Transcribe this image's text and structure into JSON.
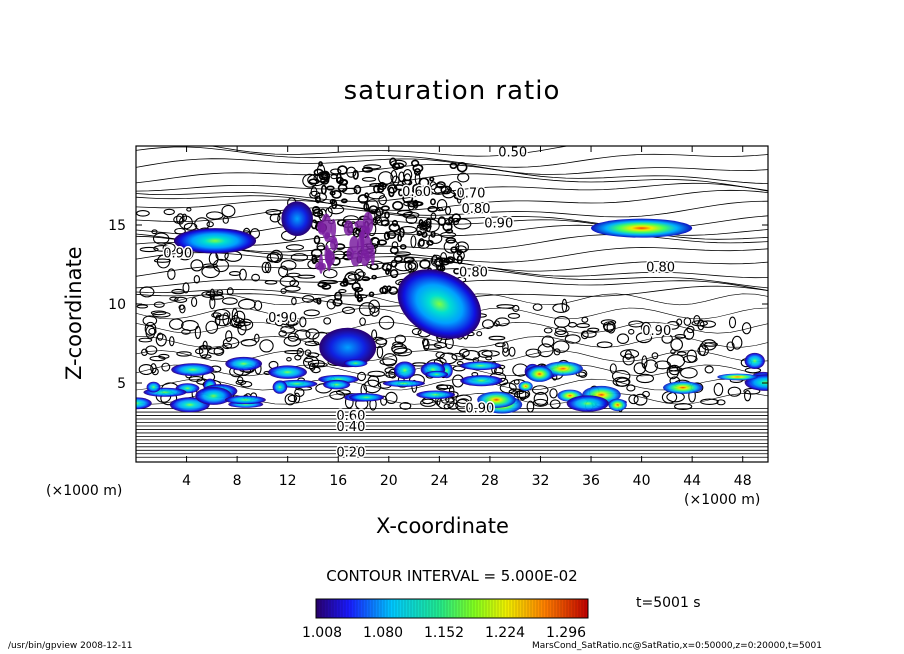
{
  "chart_data": {
    "type": "heatmap",
    "title": "saturation ratio",
    "xlabel": "X-coordinate",
    "ylabel": "Z-coordinate",
    "x_unit": "(×1000 m)",
    "y_unit": "(×1000 m)",
    "xlim": [
      0,
      50
    ],
    "ylim": [
      0,
      20
    ],
    "x_ticks": [
      4,
      8,
      12,
      16,
      20,
      24,
      28,
      32,
      36,
      40,
      44,
      48
    ],
    "y_ticks": [
      5,
      10,
      15
    ],
    "contour_interval": "CONTOUR INTERVAL = 5.000E-02",
    "contour_labels": [
      {
        "text": "0.50",
        "x": 29.8,
        "z": 19.6
      },
      {
        "text": "0.60",
        "x": 22.2,
        "z": 17.1
      },
      {
        "text": "0.70",
        "x": 26.5,
        "z": 17.0
      },
      {
        "text": "0.80",
        "x": 26.9,
        "z": 16.0
      },
      {
        "text": "0.90",
        "x": 28.7,
        "z": 15.1
      },
      {
        "text": "0.90",
        "x": 3.3,
        "z": 13.2
      },
      {
        "text": "0.80",
        "x": 26.7,
        "z": 12.0
      },
      {
        "text": "0.80",
        "x": 41.5,
        "z": 12.3
      },
      {
        "text": "0.90",
        "x": 11.6,
        "z": 9.1
      },
      {
        "text": "0.90",
        "x": 41.2,
        "z": 8.3
      },
      {
        "text": "0.90",
        "x": 27.2,
        "z": 3.4
      },
      {
        "text": "0.60",
        "x": 17.0,
        "z": 2.9
      },
      {
        "text": "0.40",
        "x": 17.0,
        "z": 2.2
      },
      {
        "text": "0.20",
        "x": 17.0,
        "z": 0.6
      }
    ],
    "supersaturated_regions": [
      {
        "x": [
          36,
          44
        ],
        "z": [
          14.2,
          15.4
        ],
        "max": 1.3
      },
      {
        "x": [
          3,
          9.5
        ],
        "z": [
          13.2,
          14.8
        ],
        "max": 1.15
      },
      {
        "x": [
          11.5,
          14
        ],
        "z": [
          14.3,
          16.5
        ],
        "max": 1.1
      },
      {
        "x": [
          20.5,
          27.5
        ],
        "z": [
          8,
          12
        ],
        "max": 1.15
      },
      {
        "x": [
          14.5,
          19
        ],
        "z": [
          12,
          15.5
        ],
        "max": 1.3
      },
      {
        "x": [
          14.5,
          19
        ],
        "z": [
          6,
          8.5
        ],
        "max": 1.1
      },
      {
        "x": [
          0,
          50
        ],
        "z": [
          3.5,
          6.5
        ],
        "max": 1.3
      }
    ]
  },
  "colorbar": {
    "ticks": [
      "1.008",
      "1.080",
      "1.152",
      "1.224",
      "1.296"
    ],
    "min": 1.008,
    "max": 1.296
  },
  "time_label": "t=5001 s",
  "footer": {
    "left": "/usr/bin/gpview   2008-12-11",
    "right": "MarsCond_SatRatio.nc@SatRatio,x=0:50000,z=0:20000,t=5001"
  }
}
